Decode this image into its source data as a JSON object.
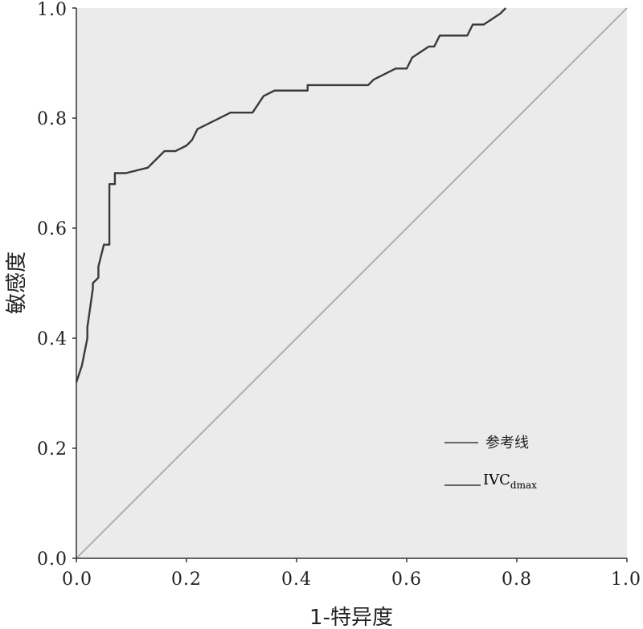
{
  "chart_data": {
    "type": "line",
    "xlabel": "1-特异度",
    "ylabel": "敏感度",
    "xlim": [
      0,
      1
    ],
    "ylim": [
      0,
      1
    ],
    "xticks": [
      "0.0",
      "0.2",
      "0.4",
      "0.6",
      "0.8",
      "1.0"
    ],
    "yticks": [
      "0.0",
      "0.2",
      "0.4",
      "0.6",
      "0.8",
      "1.0"
    ],
    "grid": false,
    "legend_position": "bottom-right",
    "colors": {
      "plot_background": "#ebebeb",
      "roc_line": "#3a3a3a",
      "reference_line": "#a9a9a9",
      "axis": "#333333"
    },
    "series": [
      {
        "name": "IVC",
        "name_subscript": "dmax",
        "x": [
          0,
          0.01,
          0.02,
          0.02,
          0.03,
          0.03,
          0.04,
          0.04,
          0.05,
          0.06,
          0.06,
          0.07,
          0.07,
          0.09,
          0.13,
          0.16,
          0.18,
          0.2,
          0.21,
          0.22,
          0.28,
          0.32,
          0.34,
          0.36,
          0.42,
          0.42,
          0.53,
          0.54,
          0.56,
          0.58,
          0.6,
          0.61,
          0.64,
          0.65,
          0.66,
          0.71,
          0.72,
          0.74,
          0.77,
          0.78
        ],
        "y": [
          0.32,
          0.35,
          0.4,
          0.42,
          0.49,
          0.5,
          0.51,
          0.53,
          0.57,
          0.57,
          0.68,
          0.68,
          0.7,
          0.7,
          0.71,
          0.74,
          0.74,
          0.75,
          0.76,
          0.78,
          0.81,
          0.81,
          0.84,
          0.85,
          0.85,
          0.86,
          0.86,
          0.87,
          0.88,
          0.89,
          0.89,
          0.91,
          0.93,
          0.93,
          0.95,
          0.95,
          0.97,
          0.97,
          0.99,
          1.0
        ]
      },
      {
        "name": "参考线",
        "x": [
          0,
          1
        ],
        "y": [
          0,
          1
        ]
      }
    ]
  }
}
